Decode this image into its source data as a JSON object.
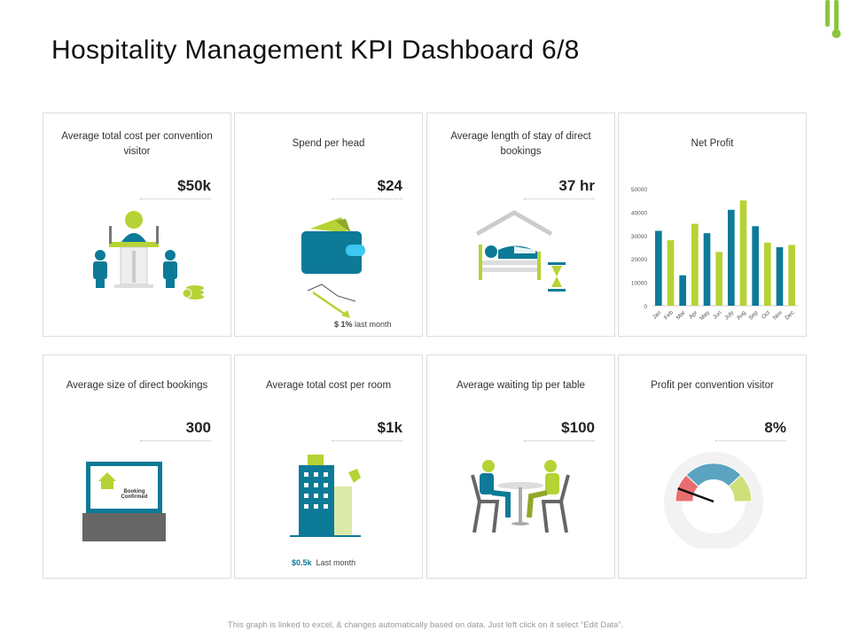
{
  "title": "Hospitality Management KPI Dashboard 6/8",
  "colors": {
    "teal": "#0d7a97",
    "green": "#b5d334",
    "red": "#e05a5a",
    "blue": "#5ba4c1"
  },
  "cards": [
    {
      "label": "Average total cost per convention visitor",
      "value": "$50k",
      "icon": "speaker-podium-icon"
    },
    {
      "label": "Spend per head",
      "value": "$24",
      "icon": "wallet-icon",
      "note_value": "$ 1%",
      "note_text": "last month"
    },
    {
      "label": "Average length of stay of direct bookings",
      "value": "37 hr",
      "icon": "bed-hourglass-icon"
    },
    {
      "label": "Net Profit",
      "icon": "bar-chart"
    },
    {
      "label": "Average size of direct bookings",
      "value": "300",
      "icon": "laptop-booking-icon",
      "screen_text": "Booking Confirmed"
    },
    {
      "label": "Average total cost per room",
      "value": "$1k",
      "icon": "hotel-building-icon",
      "note_value": "$0.5k",
      "note_text": "Last month"
    },
    {
      "label": "Average waiting tip per table",
      "value": "$100",
      "icon": "dining-table-icon"
    },
    {
      "label": "Profit per convention visitor",
      "value": "8%",
      "icon": "gauge-icon",
      "gauge_level": 0.08
    }
  ],
  "chart_data": {
    "type": "bar",
    "title": "Net Profit",
    "categories": [
      "Jan",
      "Feb",
      "Mar",
      "Apr",
      "May",
      "Jun",
      "July",
      "Aug",
      "Sep",
      "Oct",
      "Nov",
      "Dec"
    ],
    "values": [
      32000,
      28000,
      13000,
      35000,
      31000,
      23000,
      41000,
      45000,
      34000,
      27000,
      25000,
      26000
    ],
    "yticks": [
      "0",
      "10000",
      "20000",
      "30000",
      "40000",
      "50000"
    ],
    "ylim": [
      0,
      50000
    ],
    "grid": false,
    "colors_alternate": [
      "#0d7a97",
      "#b5d334"
    ]
  },
  "footer": "This graph is linked to excel, & changes automatically based on data. Just left click on it select “Edit Data”."
}
